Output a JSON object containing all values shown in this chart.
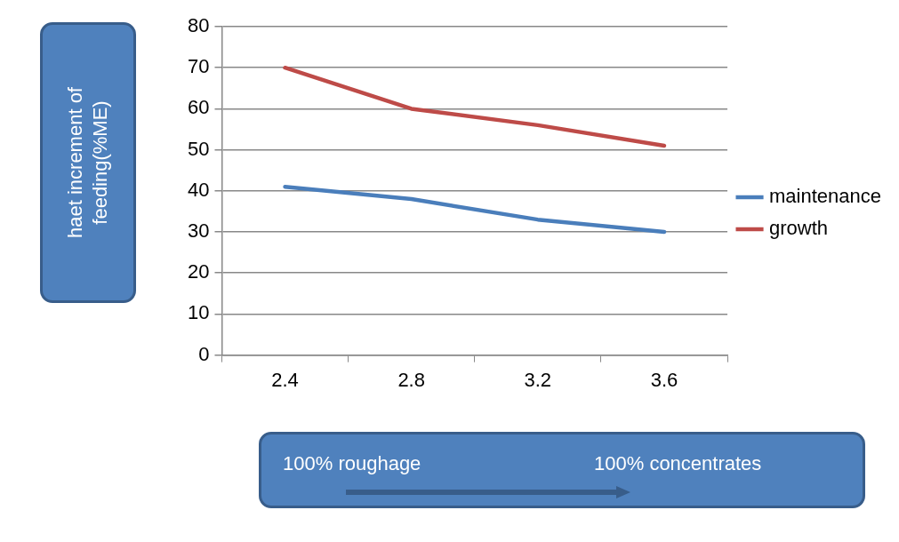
{
  "chart_data": {
    "type": "line",
    "ylabel": "haet increment of feeding(%ME)",
    "categories": [
      "2.4",
      "2.8",
      "3.2",
      "3.6"
    ],
    "series": [
      {
        "name": "maintenance",
        "color": "#4a7ebb",
        "values": [
          41,
          38,
          33,
          30
        ]
      },
      {
        "name": "growth",
        "color": "#be4b48",
        "values": [
          70,
          60,
          56,
          51
        ]
      }
    ],
    "ylim": [
      0,
      80
    ],
    "yticks": [
      0,
      10,
      20,
      30,
      40,
      50,
      60,
      70,
      80
    ],
    "grid": "y",
    "legend": "right",
    "marker": "none",
    "line_style": "solid",
    "annotations": [
      "100% roughage",
      "100% concentrates"
    ]
  }
}
